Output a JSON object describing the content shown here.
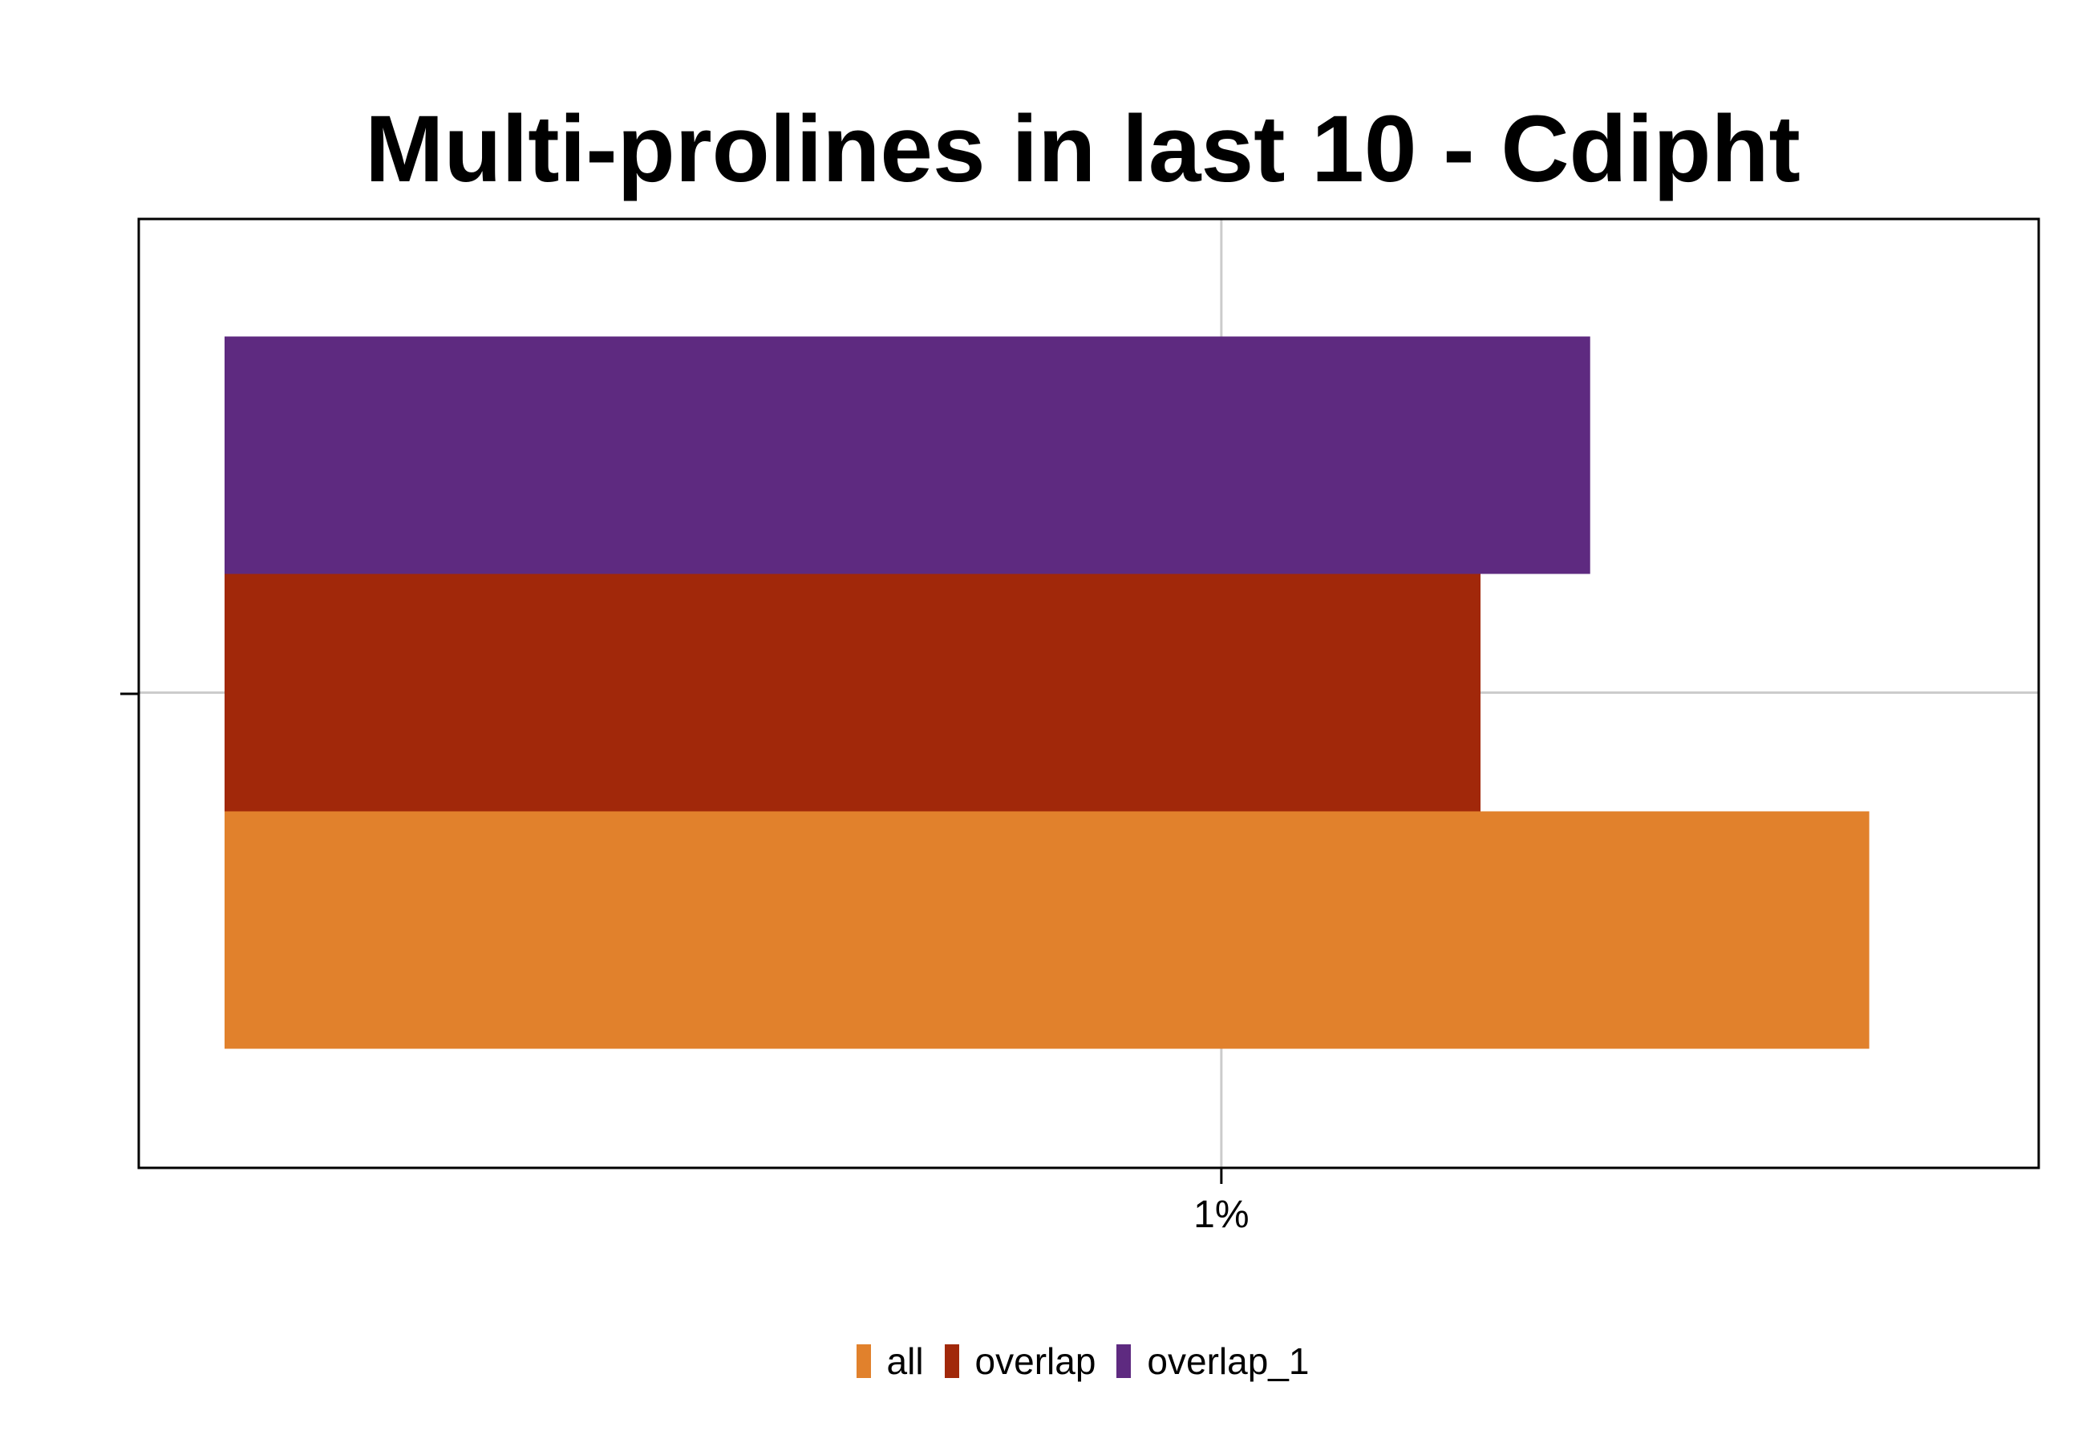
{
  "chart_data": {
    "type": "bar",
    "orientation": "horizontal",
    "title": "Multi-prolines in last 10 - Cdipht",
    "xlabel": "",
    "ylabel": "",
    "categories": [
      ""
    ],
    "x_tick_labels": [
      "1%"
    ],
    "x_tick_values": [
      0.01
    ],
    "xlim": [
      0.0,
      0.0182
    ],
    "series": [
      {
        "name": "all",
        "color": "#E1812C",
        "values": [
          0.0165
        ]
      },
      {
        "name": "overlap",
        "color": "#A1280A",
        "values": [
          0.0126
        ]
      },
      {
        "name": "overlap_1",
        "color": "#5E2A80",
        "values": [
          0.0137
        ]
      }
    ],
    "grid": true,
    "legend_position": "bottom"
  }
}
